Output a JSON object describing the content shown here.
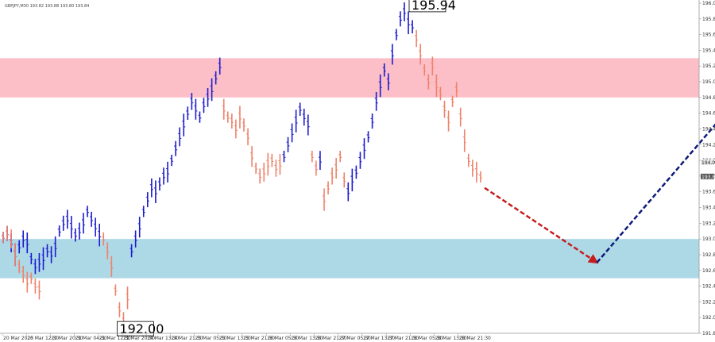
{
  "chart_data": {
    "type": "bar",
    "symbol_line": "GBPJPY,M30  193.82 193.88 193.80 193.84",
    "ylim": [
      191.85,
      196.05
    ],
    "y_ticks": [
      "196.05",
      "195.85",
      "195.65",
      "195.45",
      "195.25",
      "195.05",
      "194.85",
      "194.65",
      "194.45",
      "194.25",
      "194.05",
      "193.85",
      "193.65",
      "193.45",
      "193.25",
      "193.05",
      "192.85",
      "192.65",
      "192.45",
      "192.25",
      "192.05",
      "191.85"
    ],
    "price_tags": [
      "194.02",
      "193.84"
    ],
    "x_ticks": [
      "20 Mar 2025",
      "20 Mar 12:30",
      "20 Mar 20:30",
      "21 Mar 04:30",
      "21 Mar 12:30",
      "21 Mar 20:30",
      "24 Mar 13:30",
      "24 Mar 21:30",
      "25 Mar 05:30",
      "25 Mar 13:30",
      "25 Mar 21:30",
      "26 Mar 05:30",
      "26 Mar 13:30",
      "26 Mar 21:30",
      "27 Mar 05:30",
      "27 Mar 13:30",
      "27 Mar 21:30",
      "28 Mar 05:30",
      "28 Mar 13:30",
      "28 Mar 21:30"
    ],
    "resistance_zone": [
      194.85,
      195.35
    ],
    "support_zone": [
      192.55,
      193.05
    ],
    "annotations": [
      {
        "text": "195.94",
        "price": 195.94
      },
      {
        "text": "192.00",
        "price": 192.0
      }
    ],
    "forecast_down": {
      "from": [
        120,
        193.7
      ],
      "to": [
        148,
        192.75
      ]
    },
    "forecast_up": {
      "from": [
        148,
        192.75
      ],
      "to": [
        185,
        194.95
      ]
    },
    "series": [
      {
        "color": "#1c1ccf",
        "values": [
          [
            0,
            193.07
          ],
          [
            1,
            193.12
          ],
          [
            2,
            193.0
          ],
          [
            3,
            192.85
          ],
          [
            4,
            192.95
          ],
          [
            5,
            193.05
          ],
          [
            6,
            193.0
          ],
          [
            7,
            192.8
          ],
          [
            8,
            192.7
          ],
          [
            9,
            192.75
          ],
          [
            10,
            192.8
          ],
          [
            11,
            192.9
          ],
          [
            12,
            192.85
          ],
          [
            13,
            192.95
          ],
          [
            14,
            193.15
          ],
          [
            15,
            193.25
          ],
          [
            16,
            193.3
          ],
          [
            17,
            193.2
          ],
          [
            18,
            193.1
          ],
          [
            19,
            193.15
          ],
          [
            20,
            193.25
          ],
          [
            21,
            193.4
          ],
          [
            22,
            193.3
          ],
          [
            23,
            193.2
          ],
          [
            24,
            193.1
          ],
          [
            32,
            192.9
          ],
          [
            33,
            193.05
          ],
          [
            34,
            193.2
          ],
          [
            35,
            193.4
          ],
          [
            36,
            193.55
          ],
          [
            37,
            193.7
          ],
          [
            38,
            193.65
          ],
          [
            39,
            193.75
          ],
          [
            40,
            193.85
          ],
          [
            41,
            193.9
          ],
          [
            42,
            194.05
          ],
          [
            43,
            194.2
          ],
          [
            44,
            194.35
          ],
          [
            45,
            194.5
          ],
          [
            46,
            194.65
          ],
          [
            47,
            194.8
          ],
          [
            48,
            194.7
          ],
          [
            49,
            194.6
          ],
          [
            50,
            194.75
          ],
          [
            51,
            194.85
          ],
          [
            52,
            194.95
          ],
          [
            53,
            195.1
          ],
          [
            54,
            195.25
          ],
          [
            70,
            194.1
          ],
          [
            71,
            194.25
          ],
          [
            72,
            194.4
          ],
          [
            73,
            194.55
          ],
          [
            74,
            194.7
          ],
          [
            75,
            194.6
          ],
          [
            76,
            194.5
          ],
          [
            79,
            194.05
          ],
          [
            86,
            193.65
          ],
          [
            87,
            193.8
          ],
          [
            88,
            193.9
          ],
          [
            89,
            194.05
          ],
          [
            90,
            194.2
          ],
          [
            91,
            194.35
          ],
          [
            92,
            194.55
          ],
          [
            93,
            194.8
          ],
          [
            94,
            195.0
          ],
          [
            95,
            195.2
          ],
          [
            96,
            195.05
          ],
          [
            97,
            195.4
          ],
          [
            98,
            195.65
          ],
          [
            99,
            195.85
          ],
          [
            100,
            195.94
          ],
          [
            101,
            195.8
          ],
          [
            102,
            195.75
          ]
        ]
      },
      {
        "color": "#f0826a",
        "values": [
          [
            0,
            193.07
          ],
          [
            1,
            193.12
          ],
          [
            2,
            193.05
          ],
          [
            3,
            192.85
          ],
          [
            4,
            192.7
          ],
          [
            5,
            192.6
          ],
          [
            6,
            192.5
          ],
          [
            7,
            192.55
          ],
          [
            8,
            192.45
          ],
          [
            9,
            192.4
          ],
          [
            25,
            193.05
          ],
          [
            26,
            192.9
          ],
          [
            27,
            192.7
          ],
          [
            28,
            192.4
          ],
          [
            29,
            192.15
          ],
          [
            30,
            192.0
          ],
          [
            31,
            192.3
          ],
          [
            55,
            194.7
          ],
          [
            56,
            194.6
          ],
          [
            57,
            194.55
          ],
          [
            58,
            194.45
          ],
          [
            59,
            194.6
          ],
          [
            60,
            194.5
          ],
          [
            61,
            194.35
          ],
          [
            62,
            194.1
          ],
          [
            63,
            193.95
          ],
          [
            64,
            193.85
          ],
          [
            65,
            193.9
          ],
          [
            66,
            194.0
          ],
          [
            67,
            194.05
          ],
          [
            68,
            193.95
          ],
          [
            69,
            194.0
          ],
          [
            77,
            194.1
          ],
          [
            78,
            193.95
          ],
          [
            80,
            193.55
          ],
          [
            81,
            193.7
          ],
          [
            82,
            193.85
          ],
          [
            83,
            193.95
          ],
          [
            84,
            194.1
          ],
          [
            85,
            193.8
          ],
          [
            103,
            195.6
          ],
          [
            104,
            195.4
          ],
          [
            105,
            195.2
          ],
          [
            106,
            195.05
          ],
          [
            107,
            195.25
          ],
          [
            108,
            195.0
          ],
          [
            109,
            194.9
          ],
          [
            110,
            194.7
          ],
          [
            111,
            194.55
          ],
          [
            112,
            194.8
          ],
          [
            113,
            194.95
          ],
          [
            114,
            194.6
          ],
          [
            115,
            194.3
          ],
          [
            116,
            194.05
          ],
          [
            117,
            193.95
          ],
          [
            118,
            193.9
          ],
          [
            119,
            193.84
          ]
        ]
      }
    ]
  }
}
